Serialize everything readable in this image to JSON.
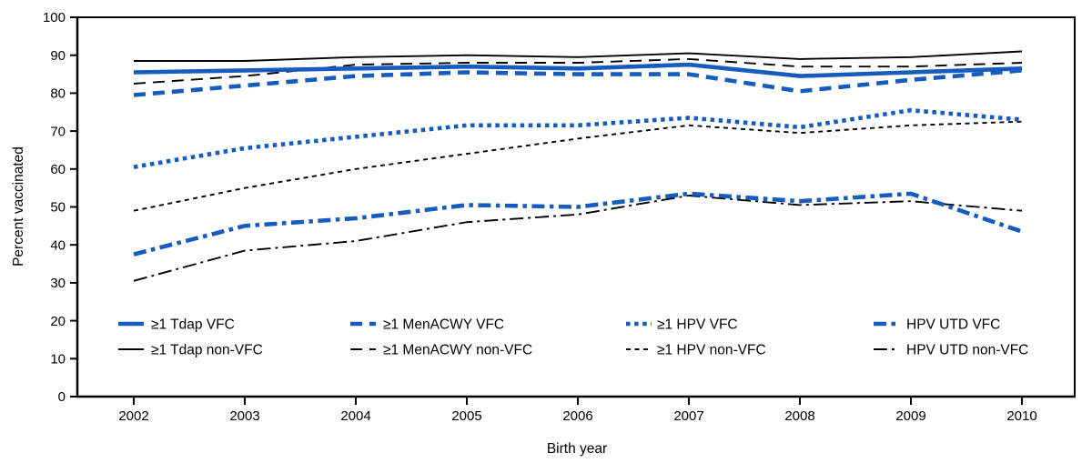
{
  "figure": {
    "title": "",
    "y_axis_title": "Percent vaccinated",
    "x_axis_title": "Birth year"
  },
  "chart_data": {
    "type": "line",
    "title": "",
    "xlabel": "Birth year",
    "ylabel": "Percent vaccinated",
    "x": [
      2002,
      2003,
      2004,
      2005,
      2006,
      2007,
      2008,
      2009,
      2010
    ],
    "ylim": [
      0,
      100
    ],
    "y_ticks": [
      0,
      10,
      20,
      30,
      40,
      50,
      60,
      70,
      80,
      90,
      100
    ],
    "grid": false,
    "frame": "full-box",
    "legend_position": "inside-bottom-left, 2 rows x 4 columns",
    "colors": {
      "blue": "#155CBE",
      "black": "#000000"
    },
    "series": [
      {
        "name": "≥1 Tdap VFC",
        "color": "blue",
        "style": "solid",
        "thick": true,
        "legend_row": 0,
        "legend_col": 0,
        "values": [
          85.5,
          86,
          86.5,
          87,
          86.5,
          87.5,
          84.5,
          85.5,
          86.5
        ]
      },
      {
        "name": "≥1 MenACWY VFC",
        "color": "blue",
        "style": "long-dash",
        "thick": true,
        "legend_row": 0,
        "legend_col": 1,
        "values": [
          79.5,
          82,
          84.5,
          85.5,
          85,
          85,
          80.5,
          83.5,
          86
        ]
      },
      {
        "name": "≥1 HPV VFC",
        "color": "blue",
        "style": "dotted",
        "thick": true,
        "legend_row": 0,
        "legend_col": 2,
        "values": [
          60.5,
          65.5,
          68.5,
          71.5,
          71.5,
          73.5,
          71,
          75.5,
          73
        ]
      },
      {
        "name": "HPV UTD VFC",
        "color": "blue",
        "style": "dash-dot",
        "thick": true,
        "legend_row": 0,
        "legend_col": 3,
        "values": [
          37.5,
          45,
          47,
          50.5,
          50,
          53.5,
          51.5,
          53.5,
          43.5
        ]
      },
      {
        "name": "≥1 Tdap non-VFC",
        "color": "black",
        "style": "solid",
        "thick": false,
        "legend_row": 1,
        "legend_col": 0,
        "values": [
          88.5,
          88.5,
          89.5,
          90,
          89.5,
          90.5,
          89,
          89.5,
          91
        ]
      },
      {
        "name": "≥1 MenACWY non-VFC",
        "color": "black",
        "style": "long-dash",
        "thick": false,
        "legend_row": 1,
        "legend_col": 1,
        "values": [
          82.5,
          84.5,
          87.5,
          88,
          88,
          89,
          87,
          87,
          88
        ]
      },
      {
        "name": "≥1 HPV non-VFC",
        "color": "black",
        "style": "short-dash",
        "thick": false,
        "legend_row": 1,
        "legend_col": 2,
        "values": [
          49,
          55,
          60,
          64,
          68,
          71.5,
          69.5,
          71.5,
          72.5
        ]
      },
      {
        "name": "HPV UTD non-VFC",
        "color": "black",
        "style": "dash-dot",
        "thick": false,
        "legend_row": 1,
        "legend_col": 3,
        "values": [
          30.5,
          38.5,
          41,
          46,
          48,
          53,
          50.5,
          51.5,
          49
        ]
      }
    ]
  }
}
